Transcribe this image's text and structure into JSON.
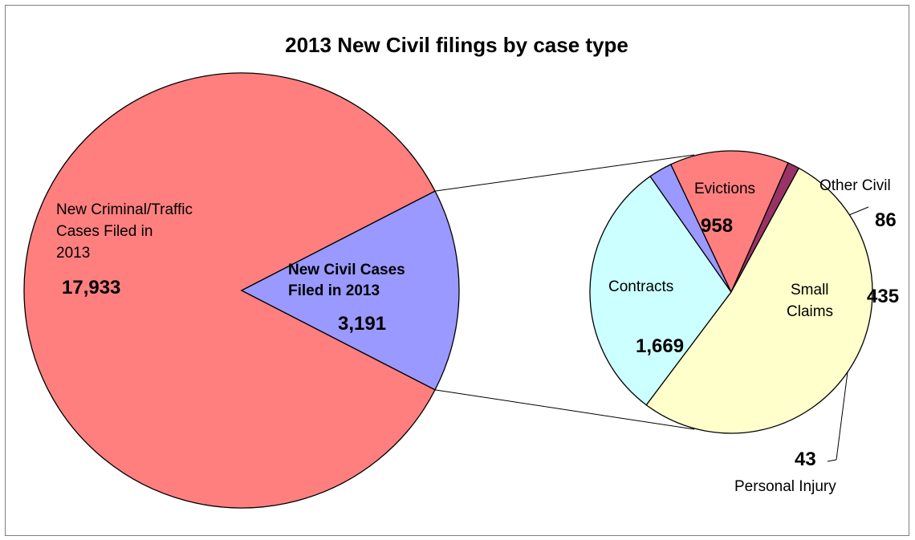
{
  "chart_data": {
    "type": "pie",
    "title": "2013 New Civil filings by case type",
    "main_pie": {
      "slices": [
        {
          "label_lines": [
            "New Criminal/Traffic",
            "Cases Filed in",
            "2013"
          ],
          "value": 17933,
          "value_label": "17,933",
          "color": "#ff7f7f"
        },
        {
          "label_lines": [
            "New Civil Cases",
            "Filed in 2013"
          ],
          "value": 3191,
          "value_label": "3,191",
          "color": "#9999ff"
        }
      ]
    },
    "breakdown_pie": {
      "of": "New Civil Cases Filed in 2013",
      "slices": [
        {
          "label": "Evictions",
          "value": 958,
          "value_label": "958",
          "color": "#ccffff"
        },
        {
          "label": "Other Civil",
          "value": 86,
          "value_label": "86",
          "color": "#9999ff"
        },
        {
          "label_lines": [
            "Small",
            "Claims"
          ],
          "value": 435,
          "value_label": "435",
          "color": "#ff7f7f"
        },
        {
          "label": "Personal Injury",
          "value": 43,
          "value_label": "43",
          "color": "#993366"
        },
        {
          "label": "Contracts",
          "value": 1669,
          "value_label": "1,669",
          "color": "#ffffcc"
        }
      ]
    }
  }
}
